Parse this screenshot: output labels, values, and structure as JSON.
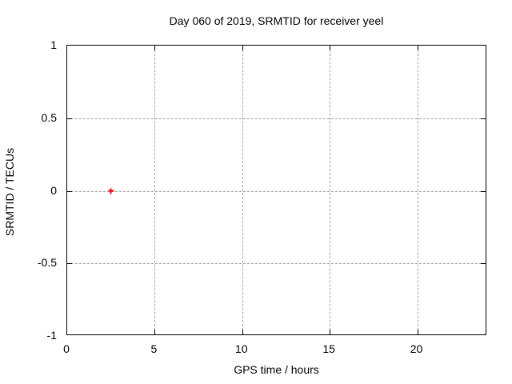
{
  "chart_data": {
    "type": "scatter",
    "title": "Day 060 of 2019, SRMTID for receiver yeel",
    "xlabel": "GPS time / hours",
    "ylabel": "SRMTID / TECUs",
    "xlim": [
      0,
      24
    ],
    "ylim": [
      -1,
      1
    ],
    "grid": true,
    "grid_style": "dashed",
    "legend": "none",
    "xticks": [
      {
        "value": 0,
        "label": "0"
      },
      {
        "value": 5,
        "label": "5"
      },
      {
        "value": 10,
        "label": "10"
      },
      {
        "value": 15,
        "label": "15"
      },
      {
        "value": 20,
        "label": "20"
      }
    ],
    "yticks": [
      {
        "value": -1,
        "label": "-1"
      },
      {
        "value": -0.5,
        "label": "-0.5"
      },
      {
        "value": 0,
        "label": "0"
      },
      {
        "value": 0.5,
        "label": "0.5"
      },
      {
        "value": 1,
        "label": "1"
      }
    ],
    "series": [
      {
        "name": "SRMTID",
        "marker": "plus",
        "color": "#ff0000",
        "points": [
          [
            2.5,
            0.0
          ]
        ]
      }
    ],
    "colors": {
      "background": "#ffffff",
      "axis": "#000000",
      "grid": "#a0a0a0",
      "text": "#000000",
      "point": "#ff0000"
    }
  }
}
